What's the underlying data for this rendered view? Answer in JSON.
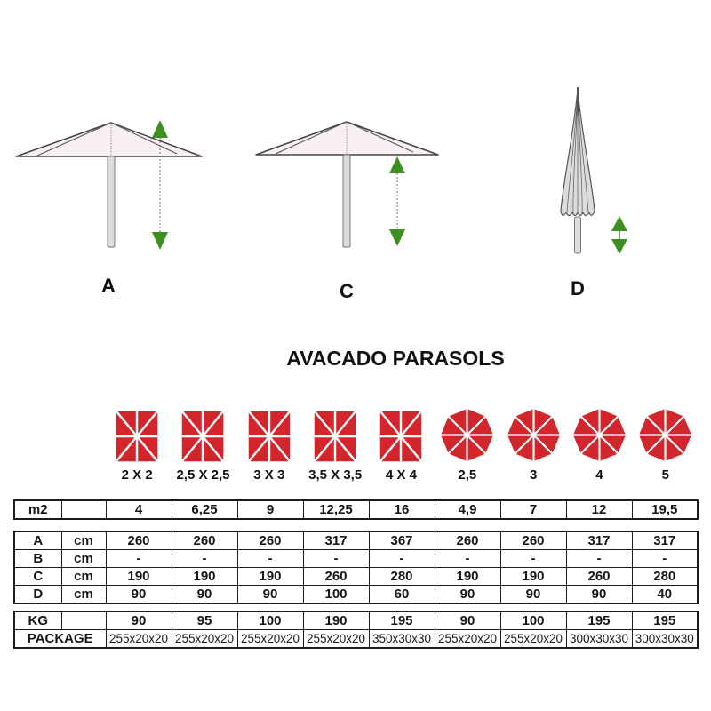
{
  "title": "AVACADO PARASOLS",
  "colors": {
    "parasol_red": "#d2262c",
    "arrow_green": "#3d8f20",
    "canopy_fill": "#f7eff3",
    "pole_fill": "#dcdcda"
  },
  "diagrams": {
    "labels": [
      "A",
      "C",
      "D"
    ]
  },
  "icons": [
    {
      "shape": "square",
      "label": "2 X 2"
    },
    {
      "shape": "square",
      "label": "2,5 X 2,5"
    },
    {
      "shape": "square",
      "label": "3 X 3"
    },
    {
      "shape": "square",
      "label": "3,5 X 3,5"
    },
    {
      "shape": "square",
      "label": "4 X 4"
    },
    {
      "shape": "round",
      "label": "2,5"
    },
    {
      "shape": "round",
      "label": "3"
    },
    {
      "shape": "round",
      "label": "4"
    },
    {
      "shape": "round",
      "label": "5"
    }
  ],
  "tables": {
    "area": {
      "rows": [
        {
          "label": "m2",
          "unit": "",
          "values": [
            "4",
            "6,25",
            "9",
            "12,25",
            "16",
            "4,9",
            "7",
            "12",
            "19,5"
          ]
        }
      ]
    },
    "dimensions": {
      "rows": [
        {
          "label": "A",
          "unit": "cm",
          "values": [
            "260",
            "260",
            "260",
            "317",
            "367",
            "260",
            "260",
            "317",
            "317"
          ]
        },
        {
          "label": "B",
          "unit": "cm",
          "values": [
            "-",
            "-",
            "-",
            "-",
            "-",
            "-",
            "-",
            "-",
            "-"
          ]
        },
        {
          "label": "C",
          "unit": "cm",
          "values": [
            "190",
            "190",
            "190",
            "260",
            "280",
            "190",
            "190",
            "260",
            "280"
          ]
        },
        {
          "label": "D",
          "unit": "cm",
          "values": [
            "90",
            "90",
            "90",
            "100",
            "60",
            "90",
            "90",
            "90",
            "40"
          ]
        }
      ]
    },
    "weight": {
      "rows": [
        {
          "label": "KG",
          "unit": "",
          "values": [
            "90",
            "95",
            "100",
            "190",
            "195",
            "90",
            "100",
            "195",
            "195"
          ]
        },
        {
          "label": "PACKAGE",
          "unit": null,
          "small": true,
          "values": [
            "255x20x20",
            "255x20x20",
            "255x20x20",
            "255x20x20",
            "350x30x30",
            "255x20x20",
            "255x20x20",
            "300x30x30",
            "300x30x30"
          ]
        }
      ]
    }
  }
}
